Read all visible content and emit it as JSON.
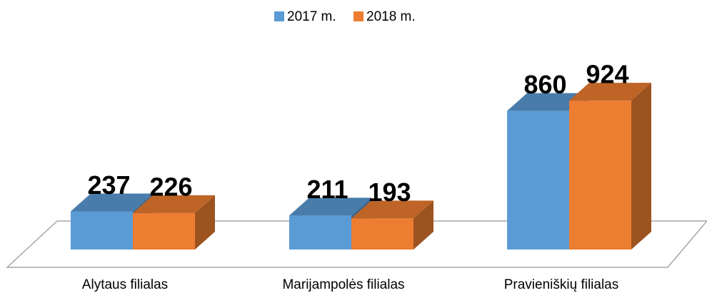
{
  "chart_data": {
    "type": "bar3d",
    "categories": [
      "Alytaus filialas",
      "Marijampolės filialas",
      "Pravieniškių filialas"
    ],
    "series": [
      {
        "name": "2017 m.",
        "color": "#5b9bd5",
        "values": [
          237,
          211,
          860
        ]
      },
      {
        "name": "2018 m.",
        "color": "#ed7d31",
        "values": [
          226,
          193,
          924
        ]
      }
    ],
    "legend": "top"
  }
}
